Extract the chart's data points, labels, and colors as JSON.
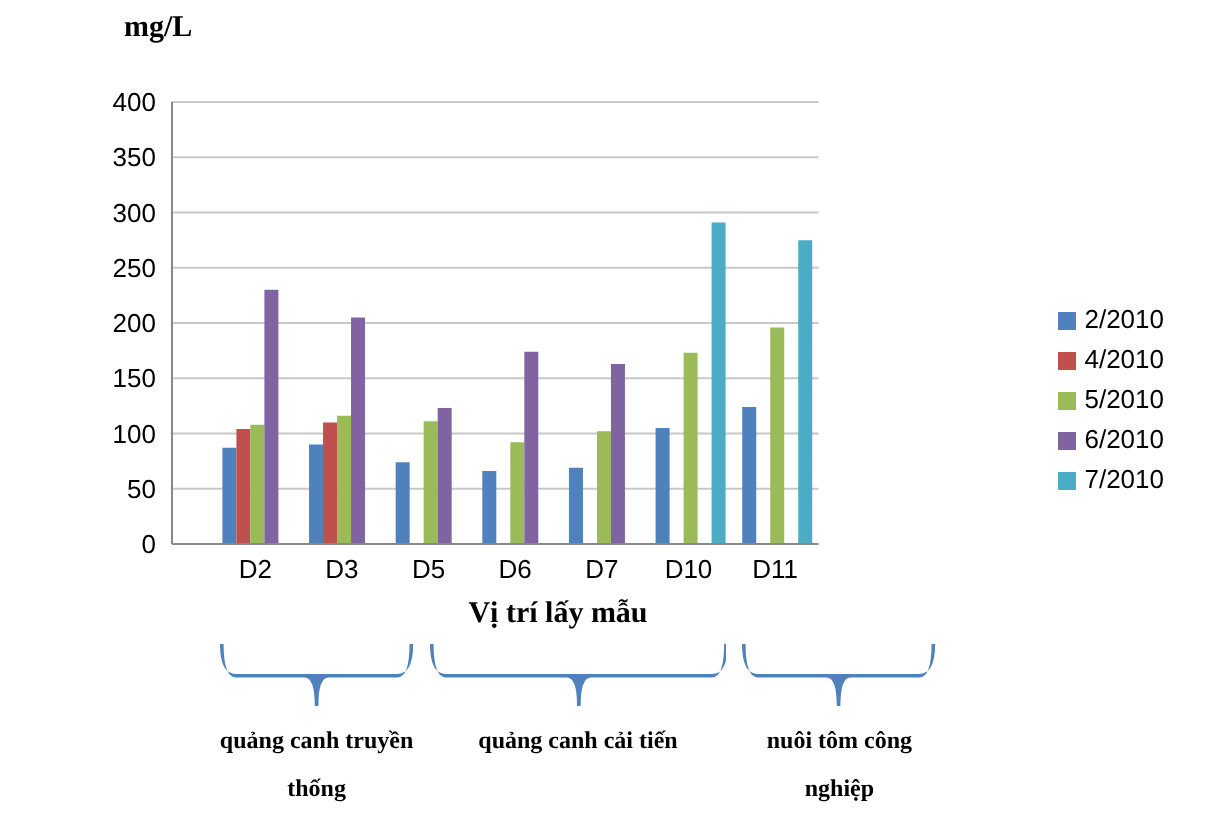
{
  "chart_data": {
    "type": "bar",
    "title": "mg/L",
    "xlabel": "Vị trí lấy mẫu",
    "categories": [
      "D2",
      "D3",
      "D5",
      "D6",
      "D7",
      "D10",
      "D11"
    ],
    "series": [
      {
        "name": "2/2010",
        "color": "#4f81bd",
        "values": [
          87,
          90,
          74,
          66,
          69,
          105,
          124
        ]
      },
      {
        "name": "4/2010",
        "color": "#c0504d",
        "values": [
          104,
          110,
          null,
          null,
          null,
          null,
          null
        ]
      },
      {
        "name": "5/2010",
        "color": "#9bbb59",
        "values": [
          108,
          116,
          111,
          92,
          102,
          173,
          196
        ]
      },
      {
        "name": "6/2010",
        "color": "#8064a2",
        "values": [
          230,
          205,
          123,
          174,
          163,
          null,
          null
        ]
      },
      {
        "name": "7/2010",
        "color": "#4bacc6",
        "values": [
          null,
          null,
          null,
          null,
          null,
          291,
          275
        ]
      }
    ],
    "ylim": [
      0,
      400
    ],
    "yticks": [
      0,
      50,
      100,
      150,
      200,
      250,
      300,
      350,
      400
    ],
    "grid": "y",
    "legend": "right",
    "annotations": [
      "quảng canh truyền thống",
      "quảng canh cải tiến",
      "nuôi tôm công nghiệp"
    ]
  }
}
